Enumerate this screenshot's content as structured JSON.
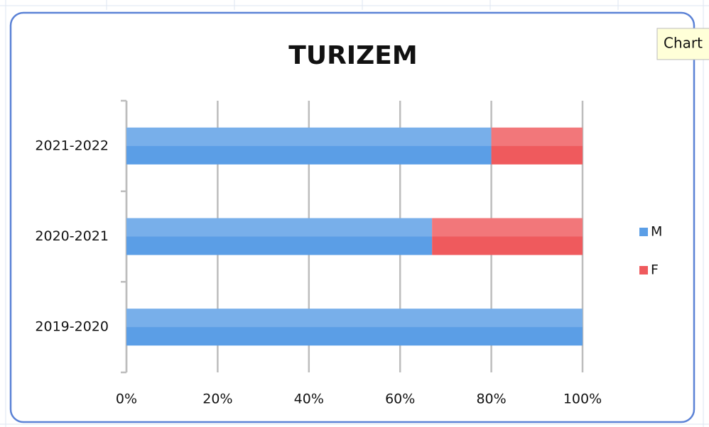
{
  "chart_data": {
    "type": "bar",
    "orientation": "horizontal",
    "stacked": true,
    "title": "TURIZEM",
    "categories": [
      "2019-2020",
      "2020-2021",
      "2021-2022"
    ],
    "series": [
      {
        "name": "M",
        "color": "#5b9ee6",
        "values": [
          100,
          67,
          80
        ]
      },
      {
        "name": "F",
        "color": "#ef5a5d",
        "values": [
          0,
          33,
          20
        ]
      }
    ],
    "xlim": [
      0,
      100
    ],
    "xticks": [
      {
        "value": 0,
        "label": "0%"
      },
      {
        "value": 20,
        "label": "20%"
      },
      {
        "value": 40,
        "label": "40%"
      },
      {
        "value": 60,
        "label": "60%"
      },
      {
        "value": 80,
        "label": "80%"
      },
      {
        "value": 100,
        "label": "100%"
      }
    ],
    "grid": true,
    "legend": "right"
  },
  "tooltip": "Chart"
}
